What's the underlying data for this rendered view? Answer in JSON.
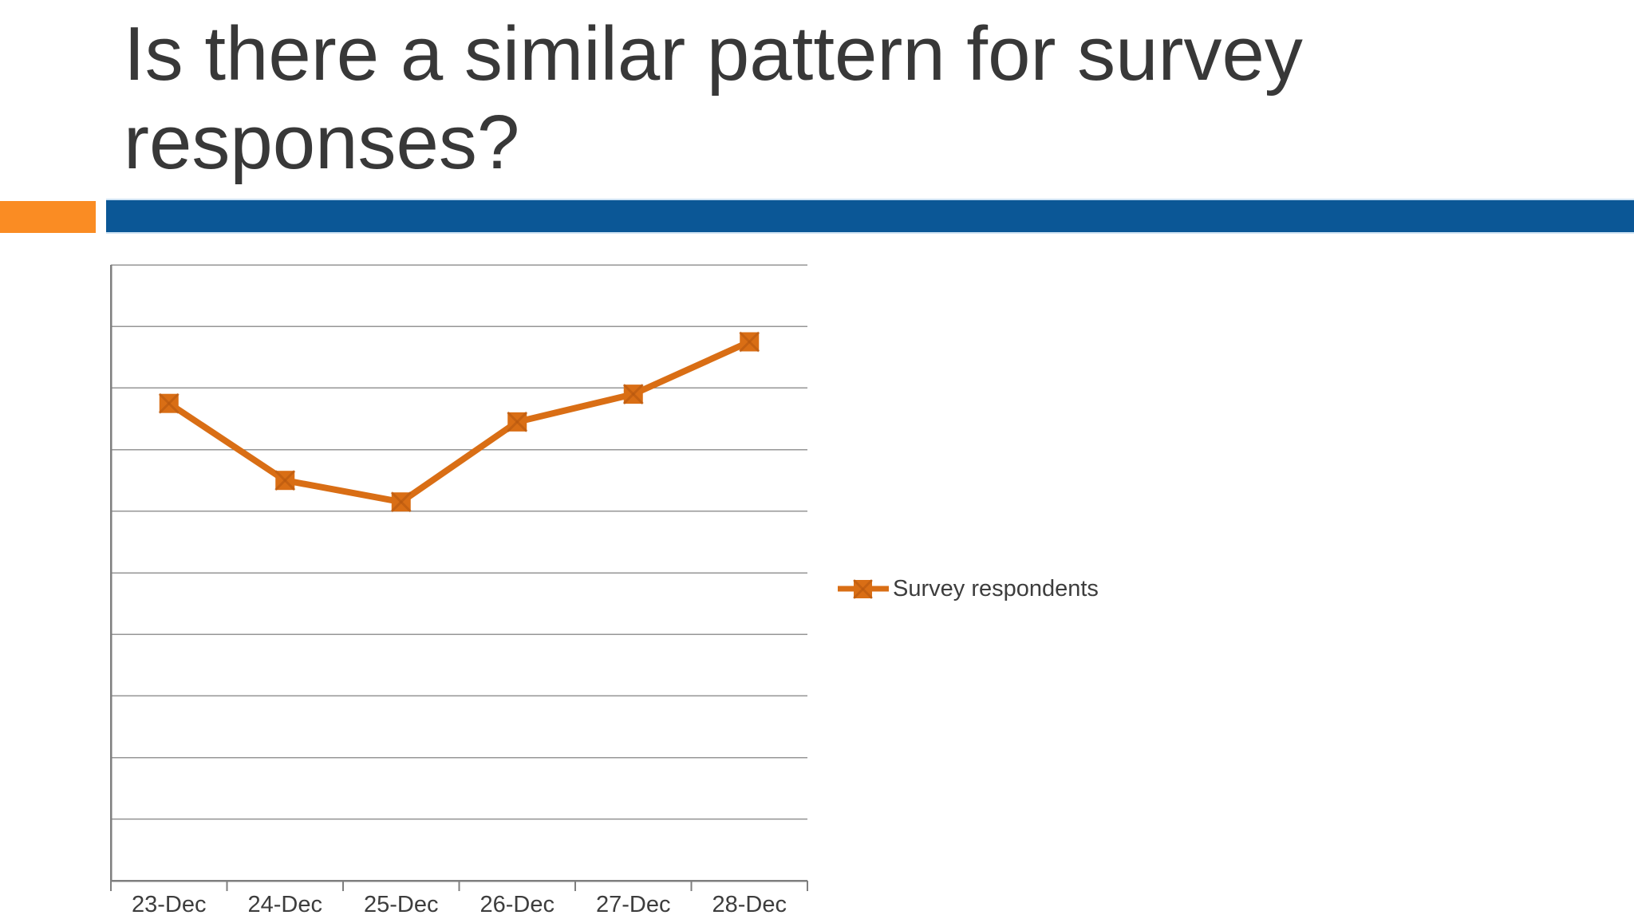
{
  "slide": {
    "title_lines": [
      "Is there a similar pattern for survey",
      "responses?"
    ],
    "accent_bar_color": "#FA8C23",
    "divider_bar_color": "#0B5796"
  },
  "chart_data": {
    "type": "line",
    "title": "",
    "categories": [
      "23-Dec",
      "24-Dec",
      "25-Dec",
      "26-Dec",
      "27-Dec",
      "28-Dec"
    ],
    "series": [
      {
        "name": "Survey respondents",
        "color": "#D96E15",
        "marker": "square-x",
        "values": [
          77.5,
          65,
          61.5,
          74.5,
          79,
          87.5
        ]
      }
    ],
    "xlabel": "",
    "ylabel": "",
    "ylim": [
      0,
      100
    ],
    "gridline_step": 10,
    "y_tick_labels_shown": false,
    "grid": true,
    "gridline_color": "#969696",
    "axis_color": "#7f7f7f",
    "legend_position": "right-middle"
  }
}
